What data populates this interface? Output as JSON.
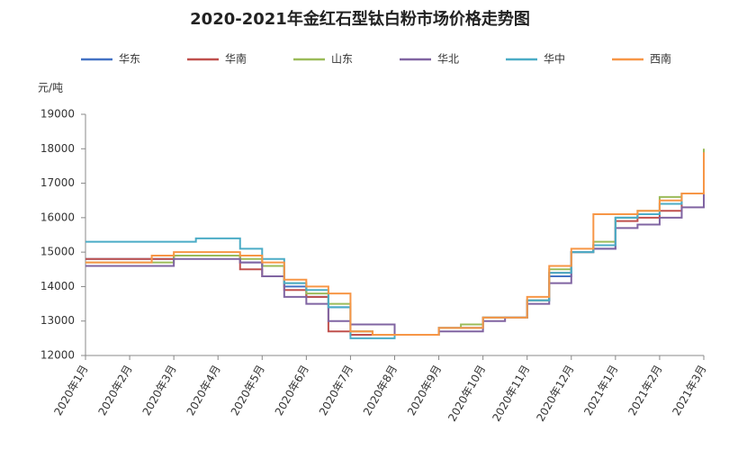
{
  "chart_data": {
    "type": "line",
    "title": "2020-2021年金红石型钛白粉市场价格走势图",
    "y_label": "元/吨",
    "categories": [
      "2020年1月",
      null,
      "2020年2月",
      null,
      "2020年3月",
      null,
      "2020年4月",
      null,
      "2020年5月",
      null,
      "2020年6月",
      null,
      "2020年7月",
      null,
      "2020年8月",
      null,
      "2020年9月",
      null,
      "2020年10月",
      null,
      "2020年11月",
      null,
      "2020年12月",
      null,
      "2021年1月",
      null,
      "2021年2月",
      null,
      "2021年3月"
    ],
    "series": [
      {
        "name": "华东",
        "color": "#4472c4",
        "values": [
          14800,
          14800,
          14800,
          14800,
          14900,
          14900,
          14900,
          14700,
          14600,
          14000,
          13700,
          13400,
          12700,
          12600,
          12600,
          12600,
          12800,
          12800,
          13100,
          13100,
          13600,
          14300,
          15000,
          15100,
          16000,
          16100,
          16400,
          16700,
          17800
        ]
      },
      {
        "name": "华南",
        "color": "#c0504d",
        "values": [
          14800,
          14800,
          14800,
          14800,
          14900,
          14900,
          14900,
          14500,
          14300,
          13900,
          13700,
          12700,
          12600,
          12600,
          12600,
          12600,
          12800,
          12800,
          13100,
          13100,
          13600,
          14400,
          15000,
          15200,
          15900,
          16000,
          16200,
          16700,
          17800
        ]
      },
      {
        "name": "山东",
        "color": "#9bbb59",
        "values": [
          14700,
          14700,
          14700,
          14700,
          14900,
          14900,
          14900,
          14800,
          14600,
          14100,
          13800,
          13500,
          12700,
          12600,
          12600,
          12600,
          12800,
          12900,
          13100,
          13100,
          13600,
          14500,
          15000,
          15300,
          16000,
          16200,
          16600,
          16700,
          18000
        ]
      },
      {
        "name": "华北",
        "color": "#8064a2",
        "values": [
          14600,
          14600,
          14600,
          14600,
          14800,
          14800,
          14800,
          14700,
          14300,
          13700,
          13500,
          13000,
          12900,
          12900,
          12600,
          12600,
          12700,
          12700,
          13000,
          13100,
          13500,
          14100,
          15000,
          15100,
          15700,
          15800,
          16000,
          16300,
          17700
        ]
      },
      {
        "name": "华中",
        "color": "#4bacc6",
        "values": [
          15300,
          15300,
          15300,
          15300,
          15300,
          15400,
          15400,
          15100,
          14800,
          14100,
          13900,
          13400,
          12500,
          12500,
          12600,
          12600,
          12800,
          12800,
          13100,
          13100,
          13600,
          14400,
          15000,
          15200,
          16000,
          16100,
          16400,
          16700,
          17900
        ]
      },
      {
        "name": "西南",
        "color": "#f79646",
        "values": [
          14700,
          14700,
          14700,
          14900,
          15000,
          15000,
          15000,
          14900,
          14700,
          14200,
          14000,
          13800,
          12700,
          12600,
          12600,
          12600,
          12800,
          12800,
          13100,
          13100,
          13700,
          14600,
          15100,
          16100,
          16100,
          16200,
          16500,
          16700,
          17900
        ]
      }
    ],
    "ylim": [
      12000,
      19000
    ],
    "yticks": [
      12000,
      13000,
      14000,
      15000,
      16000,
      17000,
      18000,
      19000
    ],
    "grid": false,
    "step": true
  }
}
